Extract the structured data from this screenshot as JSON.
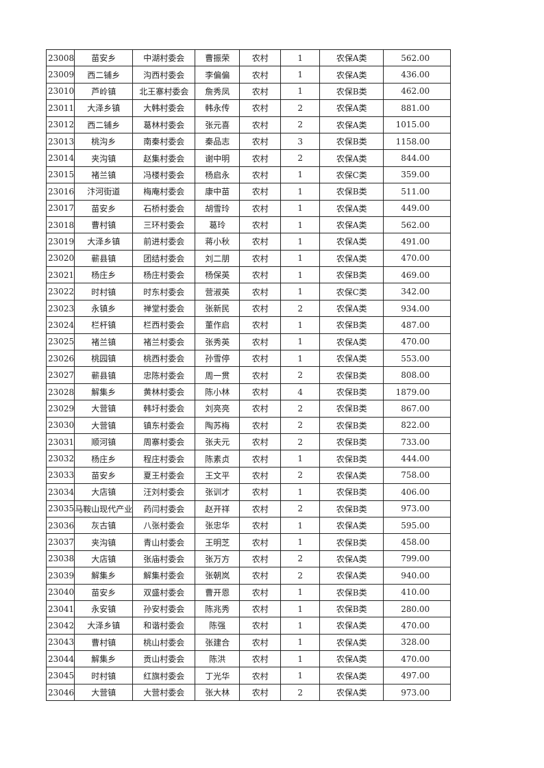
{
  "rows": [
    [
      "23008",
      "苗安乡",
      "中湖村委会",
      "曹振荣",
      "农村",
      "1",
      "农保A类",
      "562.00"
    ],
    [
      "23009",
      "西二铺乡",
      "沟西村委会",
      "李偏偏",
      "农村",
      "1",
      "农保A类",
      "436.00"
    ],
    [
      "23010",
      "芦岭镇",
      "北王寨村委会",
      "詹秀凤",
      "农村",
      "1",
      "农保B类",
      "462.00"
    ],
    [
      "23011",
      "大泽乡镇",
      "大韩村委会",
      "韩永传",
      "农村",
      "2",
      "农保A类",
      "881.00"
    ],
    [
      "23012",
      "西二铺乡",
      "葛林村委会",
      "张元喜",
      "农村",
      "2",
      "农保A类",
      "1015.00"
    ],
    [
      "23013",
      "桃沟乡",
      "南秦村委会",
      "秦品志",
      "农村",
      "3",
      "农保B类",
      "1158.00"
    ],
    [
      "23014",
      "夹沟镇",
      "赵集村委会",
      "谢中明",
      "农村",
      "2",
      "农保A类",
      "844.00"
    ],
    [
      "23015",
      "褚兰镇",
      "冯楼村委会",
      "杨启永",
      "农村",
      "1",
      "农保C类",
      "359.00"
    ],
    [
      "23016",
      "汴河街道",
      "梅庵村委会",
      "康中苗",
      "农村",
      "1",
      "农保B类",
      "511.00"
    ],
    [
      "23017",
      "苗安乡",
      "石桥村委会",
      "胡雪玲",
      "农村",
      "1",
      "农保A类",
      "449.00"
    ],
    [
      "23018",
      "曹村镇",
      "三环村委会",
      "葛玲",
      "农村",
      "1",
      "农保A类",
      "562.00"
    ],
    [
      "23019",
      "大泽乡镇",
      "前进村委会",
      "蒋小秋",
      "农村",
      "1",
      "农保A类",
      "491.00"
    ],
    [
      "23020",
      "蕲县镇",
      "团结村委会",
      "刘二朋",
      "农村",
      "1",
      "农保A类",
      "470.00"
    ],
    [
      "23021",
      "杨庄乡",
      "杨庄村委会",
      "杨保英",
      "农村",
      "1",
      "农保B类",
      "469.00"
    ],
    [
      "23022",
      "时村镇",
      "时东村委会",
      "营淑英",
      "农村",
      "1",
      "农保C类",
      "342.00"
    ],
    [
      "23023",
      "永镇乡",
      "禅堂村委会",
      "张新民",
      "农村",
      "2",
      "农保A类",
      "934.00"
    ],
    [
      "23024",
      "栏杆镇",
      "栏西村委会",
      "董作启",
      "农村",
      "1",
      "农保B类",
      "487.00"
    ],
    [
      "23025",
      "褚兰镇",
      "褚兰村委会",
      "张秀英",
      "农村",
      "1",
      "农保A类",
      "470.00"
    ],
    [
      "23026",
      "桃园镇",
      "桃西村委会",
      "孙雪停",
      "农村",
      "1",
      "农保A类",
      "553.00"
    ],
    [
      "23027",
      "蕲县镇",
      "忠陈村委会",
      "周一贯",
      "农村",
      "2",
      "农保B类",
      "808.00"
    ],
    [
      "23028",
      "解集乡",
      "黄林村委会",
      "陈小林",
      "农村",
      "4",
      "农保B类",
      "1879.00"
    ],
    [
      "23029",
      "大营镇",
      "韩圩村委会",
      "刘亮亮",
      "农村",
      "2",
      "农保B类",
      "867.00"
    ],
    [
      "23030",
      "大营镇",
      "镇东村委会",
      "陶苏梅",
      "农村",
      "2",
      "农保B类",
      "822.00"
    ],
    [
      "23031",
      "顺河镇",
      "周寨村委会",
      "张夫元",
      "农村",
      "2",
      "农保B类",
      "733.00"
    ],
    [
      "23032",
      "杨庄乡",
      "程庄村委会",
      "陈素贞",
      "农村",
      "1",
      "农保B类",
      "444.00"
    ],
    [
      "23033",
      "苗安乡",
      "夏王村委会",
      "王文平",
      "农村",
      "2",
      "农保A类",
      "758.00"
    ],
    [
      "23034",
      "大店镇",
      "汪刘村委会",
      "张训才",
      "农村",
      "1",
      "农保B类",
      "406.00"
    ],
    [
      "23035",
      "马鞍山现代产业",
      "药闫村委会",
      "赵开祥",
      "农村",
      "2",
      "农保B类",
      "973.00"
    ],
    [
      "23036",
      "灰古镇",
      "八张村委会",
      "张忠华",
      "农村",
      "1",
      "农保A类",
      "595.00"
    ],
    [
      "23037",
      "夹沟镇",
      "青山村委会",
      "王明芝",
      "农村",
      "1",
      "农保B类",
      "458.00"
    ],
    [
      "23038",
      "大店镇",
      "张庙村委会",
      "张万方",
      "农村",
      "2",
      "农保A类",
      "799.00"
    ],
    [
      "23039",
      "解集乡",
      "解集村委会",
      "张朝岚",
      "农村",
      "2",
      "农保A类",
      "940.00"
    ],
    [
      "23040",
      "苗安乡",
      "双盛村委会",
      "曹开恩",
      "农村",
      "1",
      "农保B类",
      "410.00"
    ],
    [
      "23041",
      "永安镇",
      "孙安村委会",
      "陈兆秀",
      "农村",
      "1",
      "农保B类",
      "280.00"
    ],
    [
      "23042",
      "大泽乡镇",
      "和谐村委会",
      "陈强",
      "农村",
      "1",
      "农保A类",
      "470.00"
    ],
    [
      "23043",
      "曹村镇",
      "桃山村委会",
      "张建合",
      "农村",
      "1",
      "农保A类",
      "328.00"
    ],
    [
      "23044",
      "解集乡",
      "贡山村委会",
      "陈洪",
      "农村",
      "1",
      "农保A类",
      "470.00"
    ],
    [
      "23045",
      "时村镇",
      "红旗村委会",
      "丁光华",
      "农村",
      "1",
      "农保A类",
      "497.00"
    ],
    [
      "23046",
      "大营镇",
      "大营村委会",
      "张大林",
      "农村",
      "2",
      "农保A类",
      "973.00"
    ]
  ]
}
